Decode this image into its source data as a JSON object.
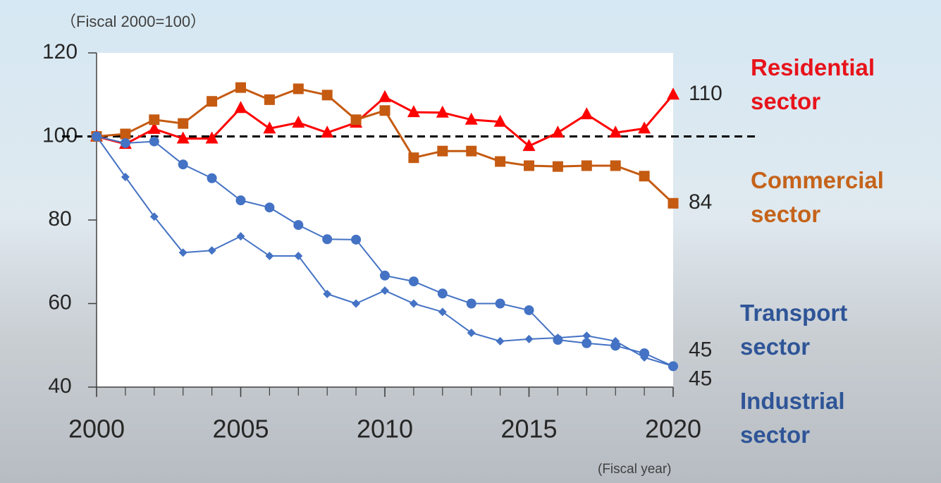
{
  "chart_data": {
    "type": "line",
    "y_label": "（Fiscal 2000=100）",
    "x_label": "(Fiscal year)",
    "x": [
      2000,
      2001,
      2002,
      2003,
      2004,
      2005,
      2006,
      2007,
      2008,
      2009,
      2010,
      2011,
      2012,
      2013,
      2014,
      2015,
      2016,
      2017,
      2018,
      2019,
      2020
    ],
    "xlim": [
      2000,
      2020
    ],
    "xticks": [
      2000,
      2005,
      2010,
      2015,
      2020
    ],
    "ylim": [
      40,
      120
    ],
    "yticks": [
      40,
      60,
      80,
      100,
      120
    ],
    "baseline": 100,
    "series": [
      {
        "name": "Residential sector",
        "color": "#ff0000",
        "label_color": "#e8131b",
        "marker": "triangle",
        "values": [
          100,
          98.2,
          101.8,
          99.5,
          99.5,
          106.8,
          101.9,
          103.3,
          100.9,
          103.3,
          109.4,
          105.8,
          105.7,
          104,
          103.5,
          97.7,
          100.9,
          105.3,
          100.9,
          101.9,
          110
        ]
      },
      {
        "name": "Commercial sector",
        "color": "#c55a11",
        "label_color": "#c5631b",
        "marker": "square",
        "values": [
          100,
          100.6,
          104,
          103.1,
          108.4,
          111.7,
          108.8,
          111.4,
          109.9,
          104,
          106.2,
          94.9,
          96.5,
          96.5,
          94,
          93,
          92.8,
          93,
          93,
          90.5,
          84
        ]
      },
      {
        "name": "Transport sector",
        "color": "#4472c4",
        "label_color": "#2f5597",
        "marker": "circle",
        "values": [
          100,
          98.4,
          98.8,
          93.3,
          90,
          84.7,
          83,
          78.8,
          75.4,
          75.3,
          66.7,
          65.3,
          62.4,
          60,
          60,
          58.4,
          51.3,
          50.5,
          49.9,
          48.1,
          45
        ]
      },
      {
        "name": "Industrial sector",
        "color": "#4472c4",
        "label_color": "#2f5597",
        "marker": "diamond",
        "values": [
          100,
          90.3,
          80.8,
          72.2,
          72.7,
          76.1,
          71.4,
          71.4,
          62.3,
          60,
          63.1,
          60,
          58,
          53,
          51,
          51.5,
          51.8,
          52.3,
          51,
          47.1,
          45
        ]
      }
    ]
  }
}
